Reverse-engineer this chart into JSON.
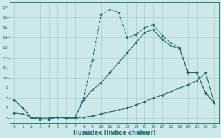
{
  "xlabel": "Humidex (Indice chaleur)",
  "xlim": [
    -0.5,
    23.5
  ],
  "ylim": [
    5.5,
    17.5
  ],
  "xticks": [
    0,
    1,
    2,
    3,
    4,
    5,
    6,
    7,
    8,
    9,
    10,
    11,
    12,
    13,
    14,
    15,
    16,
    17,
    18,
    19,
    20,
    21,
    22,
    23
  ],
  "yticks": [
    6,
    7,
    8,
    9,
    10,
    11,
    12,
    13,
    14,
    15,
    16,
    17
  ],
  "bg_color": "#cde8e8",
  "line_color": "#1a6b6b",
  "grid_color": "#aacece",
  "line1_x": [
    0,
    1,
    2,
    3,
    4,
    5,
    6,
    7,
    8,
    9,
    10,
    11,
    12,
    13,
    14,
    15,
    16,
    17,
    18,
    19,
    20,
    21,
    22,
    23
  ],
  "line1_y": [
    7.8,
    7.0,
    6.0,
    5.9,
    5.9,
    6.1,
    6.0,
    6.05,
    8.0,
    11.8,
    16.3,
    16.8,
    16.5,
    14.0,
    14.3,
    15.0,
    15.3,
    14.2,
    13.5,
    13.0,
    10.5,
    10.5,
    8.5,
    7.5
  ],
  "line2_x": [
    0,
    1,
    2,
    3,
    4,
    5,
    6,
    7,
    8,
    9,
    10,
    11,
    12,
    13,
    14,
    15,
    16,
    17,
    18,
    19,
    20,
    21,
    22,
    23
  ],
  "line2_y": [
    7.8,
    7.0,
    6.0,
    5.9,
    5.9,
    6.1,
    6.0,
    6.05,
    7.8,
    8.8,
    9.5,
    10.5,
    11.5,
    12.5,
    13.5,
    14.5,
    14.8,
    13.8,
    13.2,
    12.9,
    10.5,
    10.5,
    8.5,
    7.5
  ],
  "line3_x": [
    0,
    1,
    2,
    3,
    4,
    5,
    6,
    7,
    8,
    9,
    10,
    11,
    12,
    13,
    14,
    15,
    16,
    17,
    18,
    19,
    20,
    21,
    22,
    23
  ],
  "line3_y": [
    6.5,
    6.4,
    6.1,
    6.0,
    6.0,
    6.1,
    6.0,
    6.0,
    6.1,
    6.2,
    6.4,
    6.6,
    6.8,
    7.0,
    7.3,
    7.6,
    8.0,
    8.3,
    8.6,
    9.0,
    9.3,
    9.7,
    10.5,
    7.5
  ]
}
